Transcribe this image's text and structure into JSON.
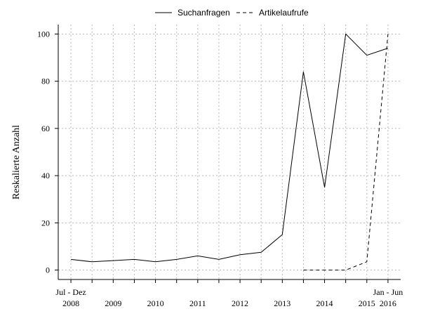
{
  "chart_data": {
    "type": "line",
    "ylabel": "Reskalierte Anzahl",
    "ylim": [
      -4,
      104
    ],
    "yticks": [
      0,
      20,
      40,
      60,
      80,
      100
    ],
    "grid": true,
    "legend_position": "top",
    "x_period_labels": [
      {
        "upper": "Jul - Dez",
        "lower": "2008"
      },
      {
        "upper": "",
        "lower": "2009"
      },
      {
        "upper": "",
        "lower": "2010"
      },
      {
        "upper": "",
        "lower": "2011"
      },
      {
        "upper": "",
        "lower": "2012"
      },
      {
        "upper": "",
        "lower": "2013"
      },
      {
        "upper": "",
        "lower": "2014"
      },
      {
        "upper": "",
        "lower": "2015"
      },
      {
        "upper": "Jan - Jun",
        "lower": "2016"
      }
    ],
    "x_period_positions": [
      0,
      2,
      4,
      6,
      8,
      10,
      12,
      14,
      15
    ],
    "x_range": [
      -0.6,
      15.6
    ],
    "series": [
      {
        "name": "Suchanfragen",
        "style": "solid",
        "x": [
          0,
          1,
          2,
          3,
          4,
          5,
          6,
          7,
          8,
          9,
          10,
          11,
          12,
          13,
          14,
          15
        ],
        "values": [
          4.5,
          3.5,
          4,
          4.5,
          3.5,
          4.5,
          6,
          4.5,
          6.5,
          7.5,
          15,
          84,
          35,
          100,
          91,
          94
        ]
      },
      {
        "name": "Artikelaufrufe",
        "style": "dashed",
        "x": [
          11,
          12,
          13,
          14,
          15
        ],
        "values": [
          0,
          0,
          0,
          3.5,
          100
        ]
      }
    ]
  }
}
